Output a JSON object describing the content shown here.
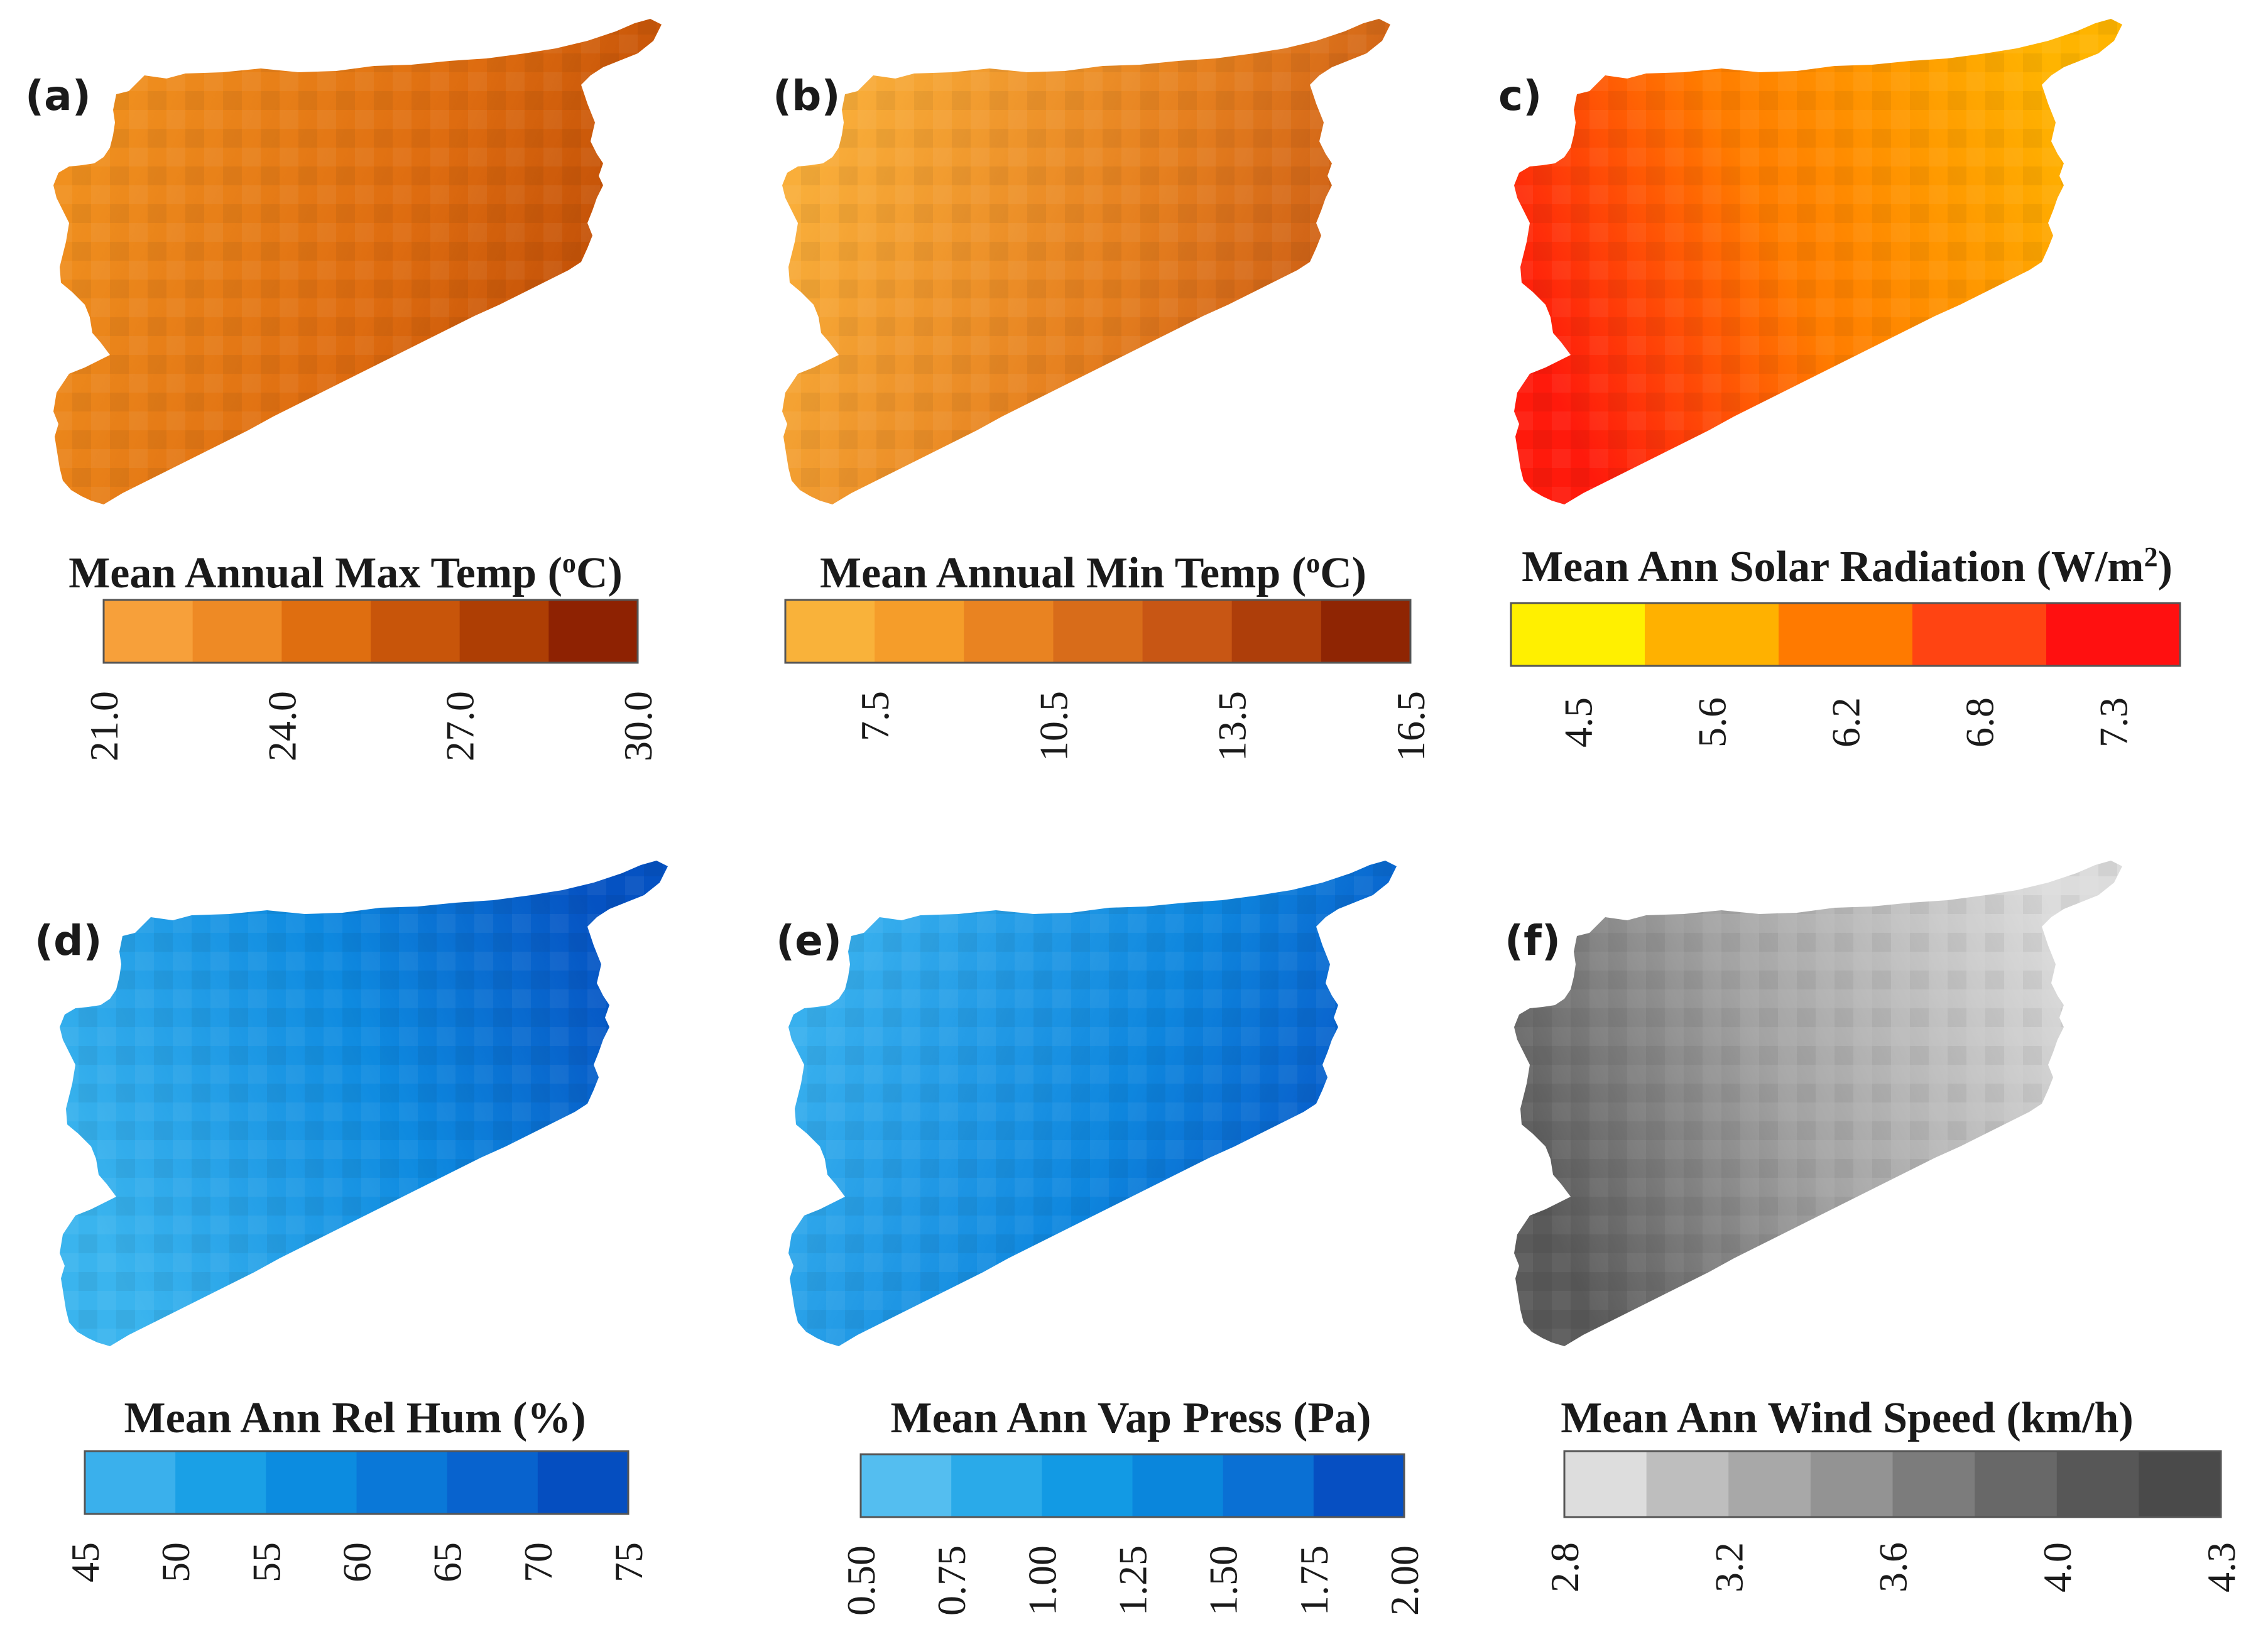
{
  "figure": {
    "panels": [
      {
        "id": "a",
        "letter": "(a)",
        "title_main": "Mean Annual Max Temp (",
        "title_sup": "o",
        "title_end": "C)",
        "legend_colors": [
          "#F7A03A",
          "#EE8A25",
          "#DF6E10",
          "#C8550A",
          "#AE3E04",
          "#8E2202"
        ],
        "tick_labels": [
          "21.0",
          "24.0",
          "27.0",
          "30.0"
        ],
        "tick_boundaries": [
          0,
          2,
          4,
          6
        ],
        "map_colors": {
          "light": "#F0901F",
          "mid": "#DE6C10",
          "dark": "#B84604"
        },
        "gradient_angle": 20
      },
      {
        "id": "b",
        "letter": "(b)",
        "title_main": "Mean Annual Min Temp (",
        "title_sup": "o",
        "title_end": "C)",
        "legend_colors": [
          "#F9B23A",
          "#F59D2A",
          "#E98321",
          "#D86C1A",
          "#C85614",
          "#AE3E0A",
          "#8F2503"
        ],
        "tick_labels": [
          "7.5",
          "10.5",
          "13.5",
          "16.5"
        ],
        "tick_boundaries": [
          1,
          3,
          5,
          7
        ],
        "map_colors": {
          "light": "#F9AE3A",
          "mid": "#E6801F",
          "dark": "#C65512"
        },
        "gradient_angle": 20
      },
      {
        "id": "c",
        "letter": "c)",
        "title_main": "Mean Ann Solar Radiation (W/m",
        "title_sup": "2",
        "title_end": ")",
        "legend_colors": [
          "#FFF000",
          "#FFB100",
          "#FF7A00",
          "#FF4412",
          "#FF1010"
        ],
        "tick_labels": [
          "4.5",
          "5.6",
          "6.2",
          "6.8",
          "7.3"
        ],
        "tick_boundaries": [
          0.5,
          1.5,
          2.5,
          3.5,
          4.5
        ],
        "map_colors": {
          "light": "#FFB400",
          "mid": "#FF7C00",
          "dark": "#FF1A0C"
        },
        "gradient_angle": 160
      },
      {
        "id": "d",
        "letter": "(d)",
        "title_main": "Mean Ann Rel Hum (%)",
        "title_sup": "",
        "title_end": "",
        "legend_colors": [
          "#3AB0EC",
          "#1AA0E6",
          "#0C8CE0",
          "#0A78D8",
          "#0863CE",
          "#054EC0"
        ],
        "tick_labels": [
          "45",
          "50",
          "55",
          "60",
          "65",
          "70",
          "75"
        ],
        "tick_boundaries": [
          0,
          1,
          2,
          3,
          4,
          5,
          6
        ],
        "map_colors": {
          "light": "#3AB4EE",
          "mid": "#0E8AE0",
          "dark": "#0552C2"
        },
        "gradient_angle": 340
      },
      {
        "id": "e",
        "letter": "(e)",
        "title_main": "Mean Ann Vap Press (Pa)",
        "title_sup": "",
        "title_end": "",
        "legend_colors": [
          "#54BEF0",
          "#2AAAE9",
          "#129AE4",
          "#0A86DC",
          "#0A70D4",
          "#064FC2"
        ],
        "tick_labels": [
          "0.50",
          "0.75",
          "1.00",
          "1.25",
          "1.50",
          "1.75",
          "2.00"
        ],
        "tick_boundaries": [
          0,
          1,
          2,
          3,
          4,
          5,
          6
        ],
        "map_colors": {
          "light": "#38B0EE",
          "mid": "#0E86DE",
          "dark": "#0650C4"
        },
        "gradient_angle": 20
      },
      {
        "id": "f",
        "letter": "(f)",
        "title_main": "Mean Ann Wind Speed (km/h)",
        "title_sup": "",
        "title_end": "",
        "legend_colors": [
          "#DDDDDD",
          "#BEBEBE",
          "#A8A8A8",
          "#939393",
          "#7C7C7C",
          "#686868",
          "#575757",
          "#4A4A4A"
        ],
        "tick_labels": [
          "2.8",
          "3.2",
          "3.6",
          "4.0",
          "4.3"
        ],
        "tick_boundaries": [
          0,
          2,
          4,
          6,
          8
        ],
        "map_colors": {
          "light": "#DCDCDC",
          "mid": "#A2A2A2",
          "dark": "#5A5A5A"
        },
        "gradient_angle": 160
      }
    ]
  }
}
